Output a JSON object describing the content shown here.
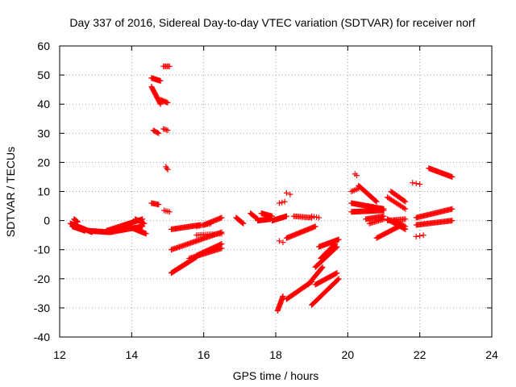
{
  "chart_data": {
    "type": "scatter",
    "title": "Day 337 of 2016, Sidereal Day-to-day VTEC variation (SDTVAR) for receiver norf",
    "xlabel": "GPS time / hours",
    "ylabel": "SDTVAR / TECUs",
    "xlim": [
      12,
      24
    ],
    "ylim": [
      -40,
      60
    ],
    "xticks": [
      12,
      14,
      16,
      18,
      20,
      22,
      24
    ],
    "yticks": [
      -40,
      -30,
      -20,
      -10,
      0,
      10,
      20,
      30,
      40,
      50,
      60
    ],
    "grid": true,
    "marker": "plus",
    "color": "#ff0000",
    "segments": [
      {
        "x0": 12.3,
        "y0": -1.0,
        "x1": 12.9,
        "y1": -4.0,
        "n": 40
      },
      {
        "x0": 12.35,
        "y0": -2.0,
        "x1": 12.7,
        "y1": -3.5,
        "n": 20
      },
      {
        "x0": 12.4,
        "y0": 0.5,
        "x1": 12.5,
        "y1": -0.5,
        "n": 8
      },
      {
        "x0": 12.8,
        "y0": -3.5,
        "x1": 13.4,
        "y1": -4.0,
        "n": 40
      },
      {
        "x0": 13.3,
        "y0": -3.5,
        "x1": 14.3,
        "y1": 0.5,
        "n": 45
      },
      {
        "x0": 13.4,
        "y0": -4.0,
        "x1": 14.3,
        "y1": -2.0,
        "n": 40
      },
      {
        "x0": 13.9,
        "y0": -2.0,
        "x1": 14.4,
        "y1": -4.5,
        "n": 25
      },
      {
        "x0": 14.1,
        "y0": 0.5,
        "x1": 14.35,
        "y1": -1.0,
        "n": 10
      },
      {
        "x0": 14.55,
        "y0": 49.0,
        "x1": 14.8,
        "y1": 48.0,
        "n": 12
      },
      {
        "x0": 14.55,
        "y0": 46.0,
        "x1": 14.8,
        "y1": 40.0,
        "n": 18
      },
      {
        "x0": 14.8,
        "y0": 41.5,
        "x1": 15.0,
        "y1": 40.5,
        "n": 8
      },
      {
        "x0": 14.6,
        "y0": 31.0,
        "x1": 14.75,
        "y1": 30.0,
        "n": 6
      },
      {
        "x0": 14.88,
        "y0": 31.5,
        "x1": 15.0,
        "y1": 31.0,
        "n": 4
      },
      {
        "x0": 14.88,
        "y0": 53.0,
        "x1": 15.05,
        "y1": 53.0,
        "n": 6
      },
      {
        "x0": 14.95,
        "y0": 18.5,
        "x1": 15.0,
        "y1": 17.5,
        "n": 3
      },
      {
        "x0": 14.55,
        "y0": 6.0,
        "x1": 14.75,
        "y1": 5.5,
        "n": 8
      },
      {
        "x0": 14.9,
        "y0": 3.5,
        "x1": 15.05,
        "y1": 3.0,
        "n": 4
      },
      {
        "x0": 15.1,
        "y0": -3.0,
        "x1": 15.9,
        "y1": -1.5,
        "n": 30
      },
      {
        "x0": 15.1,
        "y0": -10.0,
        "x1": 16.5,
        "y1": -4.0,
        "n": 45
      },
      {
        "x0": 15.1,
        "y0": -18.0,
        "x1": 15.8,
        "y1": -12.5,
        "n": 35
      },
      {
        "x0": 15.6,
        "y0": -13.0,
        "x1": 16.5,
        "y1": -9.5,
        "n": 30
      },
      {
        "x0": 15.8,
        "y0": -12.0,
        "x1": 16.5,
        "y1": -8.0,
        "n": 25
      },
      {
        "x0": 15.8,
        "y0": -5.0,
        "x1": 16.5,
        "y1": -4.5,
        "n": 15
      },
      {
        "x0": 16.0,
        "y0": -1.5,
        "x1": 16.5,
        "y1": 1.0,
        "n": 18
      },
      {
        "x0": 15.8,
        "y0": -2.0,
        "x1": 16.2,
        "y1": -1.0,
        "n": 10
      },
      {
        "x0": 16.9,
        "y0": 1.0,
        "x1": 17.1,
        "y1": -1.0,
        "n": 12
      },
      {
        "x0": 17.3,
        "y0": 2.5,
        "x1": 17.5,
        "y1": 0.5,
        "n": 10
      },
      {
        "x0": 17.5,
        "y0": 0.0,
        "x1": 17.85,
        "y1": 0.5,
        "n": 20
      },
      {
        "x0": 17.6,
        "y0": 2.5,
        "x1": 17.9,
        "y1": 1.5,
        "n": 15
      },
      {
        "x0": 17.9,
        "y0": 0.0,
        "x1": 18.3,
        "y1": 1.5,
        "n": 20
      },
      {
        "x0": 18.5,
        "y0": 1.5,
        "x1": 19.0,
        "y1": 1.0,
        "n": 15
      },
      {
        "x0": 19.0,
        "y0": 1.5,
        "x1": 19.2,
        "y1": 1.0,
        "n": 4
      },
      {
        "x0": 18.1,
        "y0": 6.0,
        "x1": 18.25,
        "y1": 6.5,
        "n": 3
      },
      {
        "x0": 18.3,
        "y0": 9.5,
        "x1": 18.4,
        "y1": 9.0,
        "n": 2
      },
      {
        "x0": 18.1,
        "y0": -7.0,
        "x1": 18.2,
        "y1": -7.5,
        "n": 2
      },
      {
        "x0": 18.3,
        "y0": -6.0,
        "x1": 19.1,
        "y1": -2.0,
        "n": 30
      },
      {
        "x0": 18.05,
        "y0": -31.0,
        "x1": 18.2,
        "y1": -26.0,
        "n": 15
      },
      {
        "x0": 18.3,
        "y0": -27.0,
        "x1": 19.0,
        "y1": -21.0,
        "n": 30
      },
      {
        "x0": 18.9,
        "y0": -22.0,
        "x1": 19.3,
        "y1": -16.0,
        "n": 20
      },
      {
        "x0": 19.0,
        "y0": -29.0,
        "x1": 19.75,
        "y1": -20.0,
        "n": 35
      },
      {
        "x0": 19.1,
        "y0": -22.0,
        "x1": 19.7,
        "y1": -18.0,
        "n": 25
      },
      {
        "x0": 19.1,
        "y0": -16.0,
        "x1": 19.7,
        "y1": -9.0,
        "n": 30
      },
      {
        "x0": 19.2,
        "y0": -9.0,
        "x1": 19.75,
        "y1": -6.5,
        "n": 25
      },
      {
        "x0": 19.25,
        "y0": -13.0,
        "x1": 19.65,
        "y1": -8.0,
        "n": 20
      },
      {
        "x0": 20.2,
        "y0": 16.0,
        "x1": 20.25,
        "y1": 15.5,
        "n": 2
      },
      {
        "x0": 20.1,
        "y0": 10.0,
        "x1": 20.3,
        "y1": 11.0,
        "n": 6
      },
      {
        "x0": 20.3,
        "y0": 12.0,
        "x1": 20.8,
        "y1": 6.5,
        "n": 25
      },
      {
        "x0": 20.1,
        "y0": 6.0,
        "x1": 21.0,
        "y1": 4.0,
        "n": 40
      },
      {
        "x0": 20.1,
        "y0": 3.0,
        "x1": 21.0,
        "y1": 3.5,
        "n": 40
      },
      {
        "x0": 20.5,
        "y0": 0.5,
        "x1": 21.0,
        "y1": 1.5,
        "n": 18
      },
      {
        "x0": 20.6,
        "y0": -1.0,
        "x1": 21.0,
        "y1": 0.5,
        "n": 12
      },
      {
        "x0": 20.8,
        "y0": -6.0,
        "x1": 21.5,
        "y1": -1.5,
        "n": 25
      },
      {
        "x0": 21.1,
        "y0": 0.5,
        "x1": 21.6,
        "y1": -3.0,
        "n": 18
      },
      {
        "x0": 21.2,
        "y0": 10.0,
        "x1": 21.6,
        "y1": 6.5,
        "n": 15
      },
      {
        "x0": 21.1,
        "y0": 8.0,
        "x1": 21.6,
        "y1": 4.0,
        "n": 15
      },
      {
        "x0": 21.1,
        "y0": 0.0,
        "x1": 21.6,
        "y1": 0.5,
        "n": 15
      },
      {
        "x0": 21.3,
        "y0": 0.0,
        "x1": 21.6,
        "y1": -2.0,
        "n": 8
      },
      {
        "x0": 21.8,
        "y0": 13.0,
        "x1": 22.0,
        "y1": 12.5,
        "n": 3
      },
      {
        "x0": 22.25,
        "y0": 18.0,
        "x1": 22.9,
        "y1": 15.0,
        "n": 28
      },
      {
        "x0": 21.9,
        "y0": 1.0,
        "x1": 22.9,
        "y1": 4.0,
        "n": 35
      },
      {
        "x0": 21.9,
        "y0": -1.5,
        "x1": 22.9,
        "y1": 0.0,
        "n": 35
      },
      {
        "x0": 21.9,
        "y0": -5.5,
        "x1": 22.1,
        "y1": -5.0,
        "n": 3
      }
    ]
  }
}
